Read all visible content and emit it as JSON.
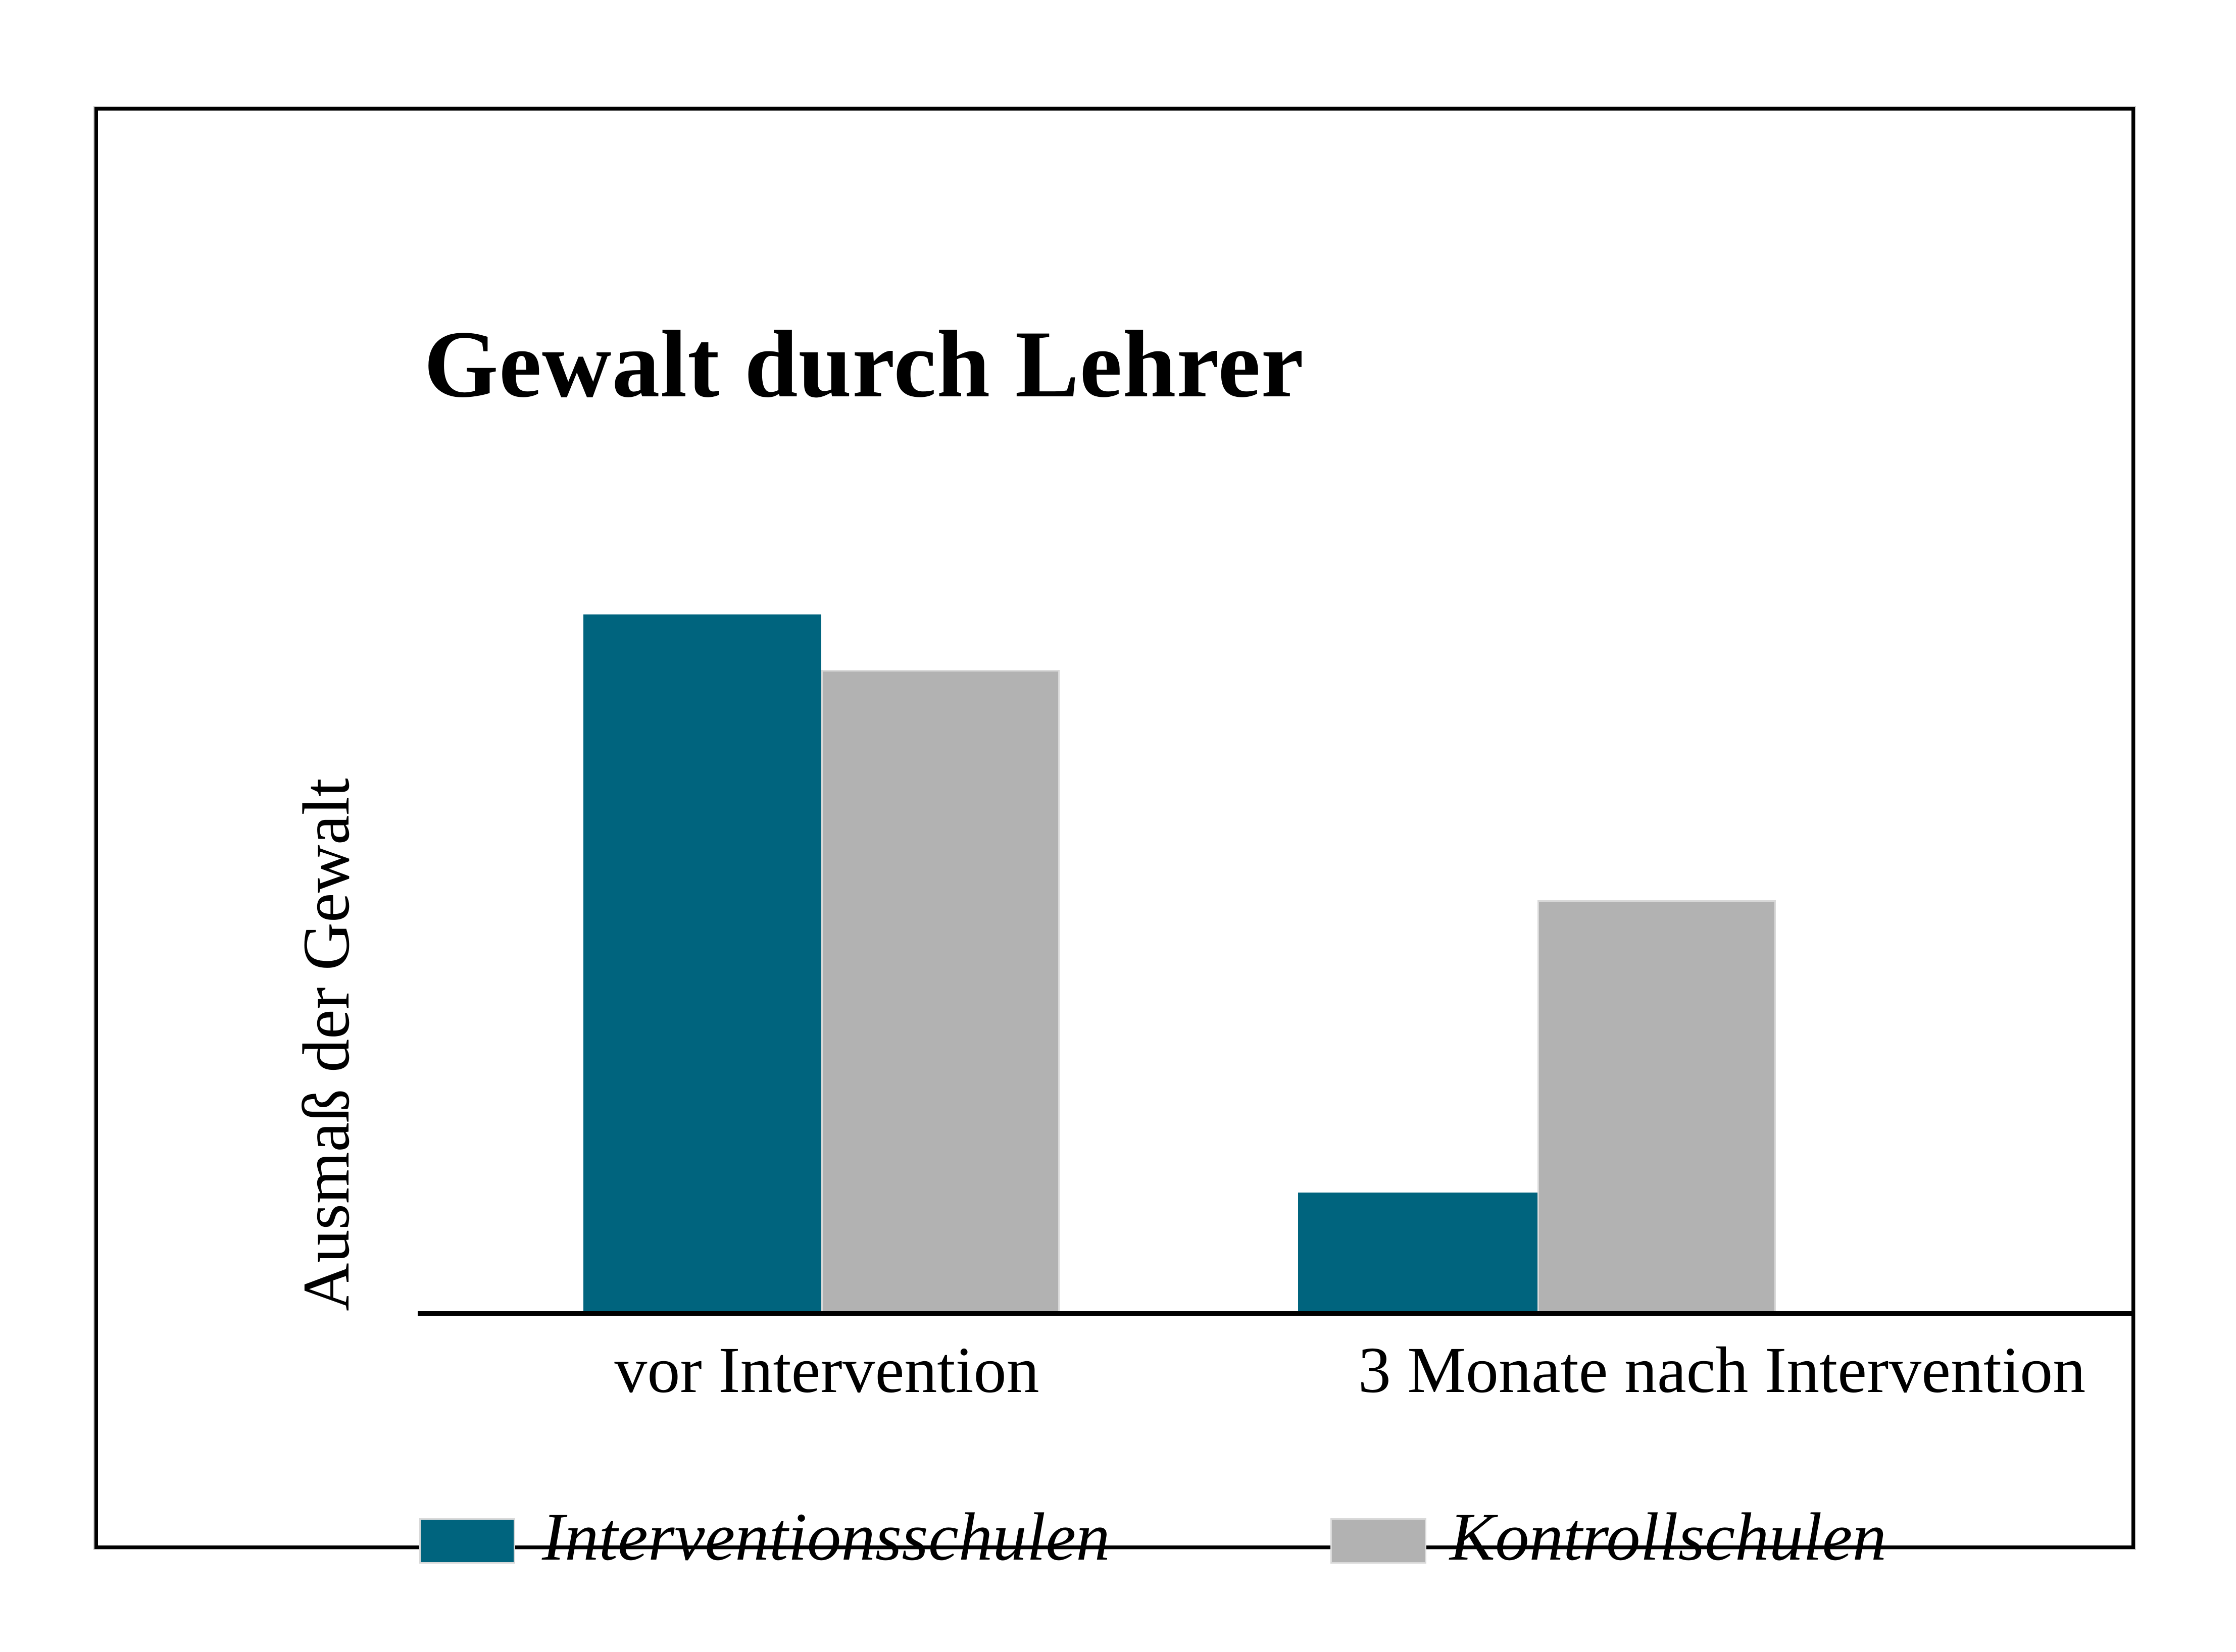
{
  "chart_data": {
    "type": "bar",
    "title": "Gewalt durch Lehrer",
    "categories": [
      "vor Intervention",
      "3 Monate nach Intervention"
    ],
    "series": [
      {
        "name": "Interventionsschulen",
        "color": "#00647e",
        "values": [
          1.0,
          0.17
        ]
      },
      {
        "name": "Kontrollschulen",
        "color": "#b2b2b2",
        "values": [
          0.92,
          0.59
        ]
      }
    ],
    "xlabel": "",
    "ylabel": "Ausmaß der Gewalt",
    "ylim": [
      0,
      1
    ],
    "y_ticks": "none",
    "grid": false,
    "legend_position": "bottom",
    "bar_mode": "grouped"
  },
  "colors": {
    "series_teal": "#00647e",
    "series_gray": "#b2b2b2",
    "bar_light_border": "#d9d9d9",
    "axis": "#000000",
    "card_border": "#000000",
    "background": "#ffffff",
    "text": "#000000"
  }
}
